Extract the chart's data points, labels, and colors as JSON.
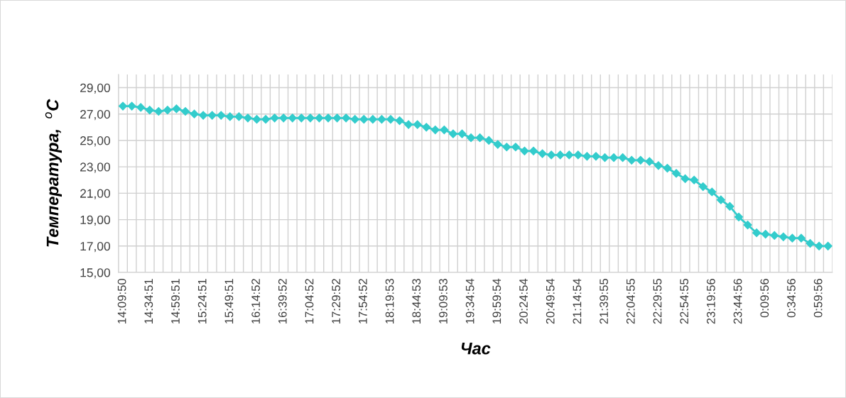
{
  "chart_data": {
    "type": "line",
    "xlabel": "Час",
    "ylabel": "Температура,  $^{o}$C",
    "categories": [
      "14:09:50",
      null,
      null,
      "14:34:51",
      null,
      null,
      "14:59:51",
      null,
      null,
      "15:24:51",
      null,
      null,
      "15:49:51",
      null,
      null,
      "16:14:52",
      null,
      null,
      "16:39:52",
      null,
      null,
      "17:04:52",
      null,
      null,
      "17:29:52",
      null,
      null,
      "17:54:52",
      null,
      null,
      "18:19:53",
      null,
      null,
      "18:44:53",
      null,
      null,
      "19:09:53",
      null,
      null,
      "19:34:54",
      null,
      null,
      "19:59:54",
      null,
      null,
      "20:24:54",
      null,
      null,
      "20:49:54",
      null,
      null,
      "21:14:54",
      null,
      null,
      "21:39:55",
      null,
      null,
      "22:04:55",
      null,
      null,
      "22:29:55",
      null,
      null,
      "22:54:55",
      null,
      null,
      "23:19:56",
      null,
      null,
      "23:44:56",
      null,
      null,
      "0:09:56",
      null,
      null,
      "0:34:56",
      null,
      null,
      "0:59:56",
      null
    ],
    "series": [
      {
        "color": "#33cccc",
        "values": [
          27.6,
          27.6,
          27.5,
          27.3,
          27.2,
          27.3,
          27.4,
          27.2,
          27.0,
          26.9,
          26.9,
          26.9,
          26.8,
          26.8,
          26.7,
          26.6,
          26.6,
          26.7,
          26.7,
          26.7,
          26.7,
          26.7,
          26.7,
          26.7,
          26.7,
          26.7,
          26.6,
          26.6,
          26.6,
          26.6,
          26.6,
          26.5,
          26.2,
          26.2,
          26.0,
          25.8,
          25.8,
          25.5,
          25.5,
          25.2,
          25.2,
          25.0,
          24.7,
          24.5,
          24.5,
          24.2,
          24.2,
          24.0,
          23.9,
          23.9,
          23.9,
          23.9,
          23.8,
          23.8,
          23.7,
          23.7,
          23.7,
          23.5,
          23.5,
          23.4,
          23.1,
          22.9,
          22.5,
          22.1,
          22.0,
          21.5,
          21.1,
          20.5,
          20.0,
          19.2,
          18.6,
          18.0,
          17.9,
          17.8,
          17.7,
          17.6,
          17.6,
          17.2,
          17.0,
          17.0
        ]
      }
    ],
    "ylim": [
      15,
      30
    ],
    "yticks": [
      {
        "value": 15,
        "label": "15,00"
      },
      {
        "value": 17,
        "label": "17,00"
      },
      {
        "value": 19,
        "label": "19,00"
      },
      {
        "value": 21,
        "label": "21,00"
      },
      {
        "value": 23,
        "label": "23,00"
      },
      {
        "value": 25,
        "label": "25,00"
      },
      {
        "value": 27,
        "label": "27,00"
      },
      {
        "value": 29,
        "label": "29,00"
      }
    ],
    "grid": true,
    "marker": "diamond",
    "line_style": "solid"
  }
}
